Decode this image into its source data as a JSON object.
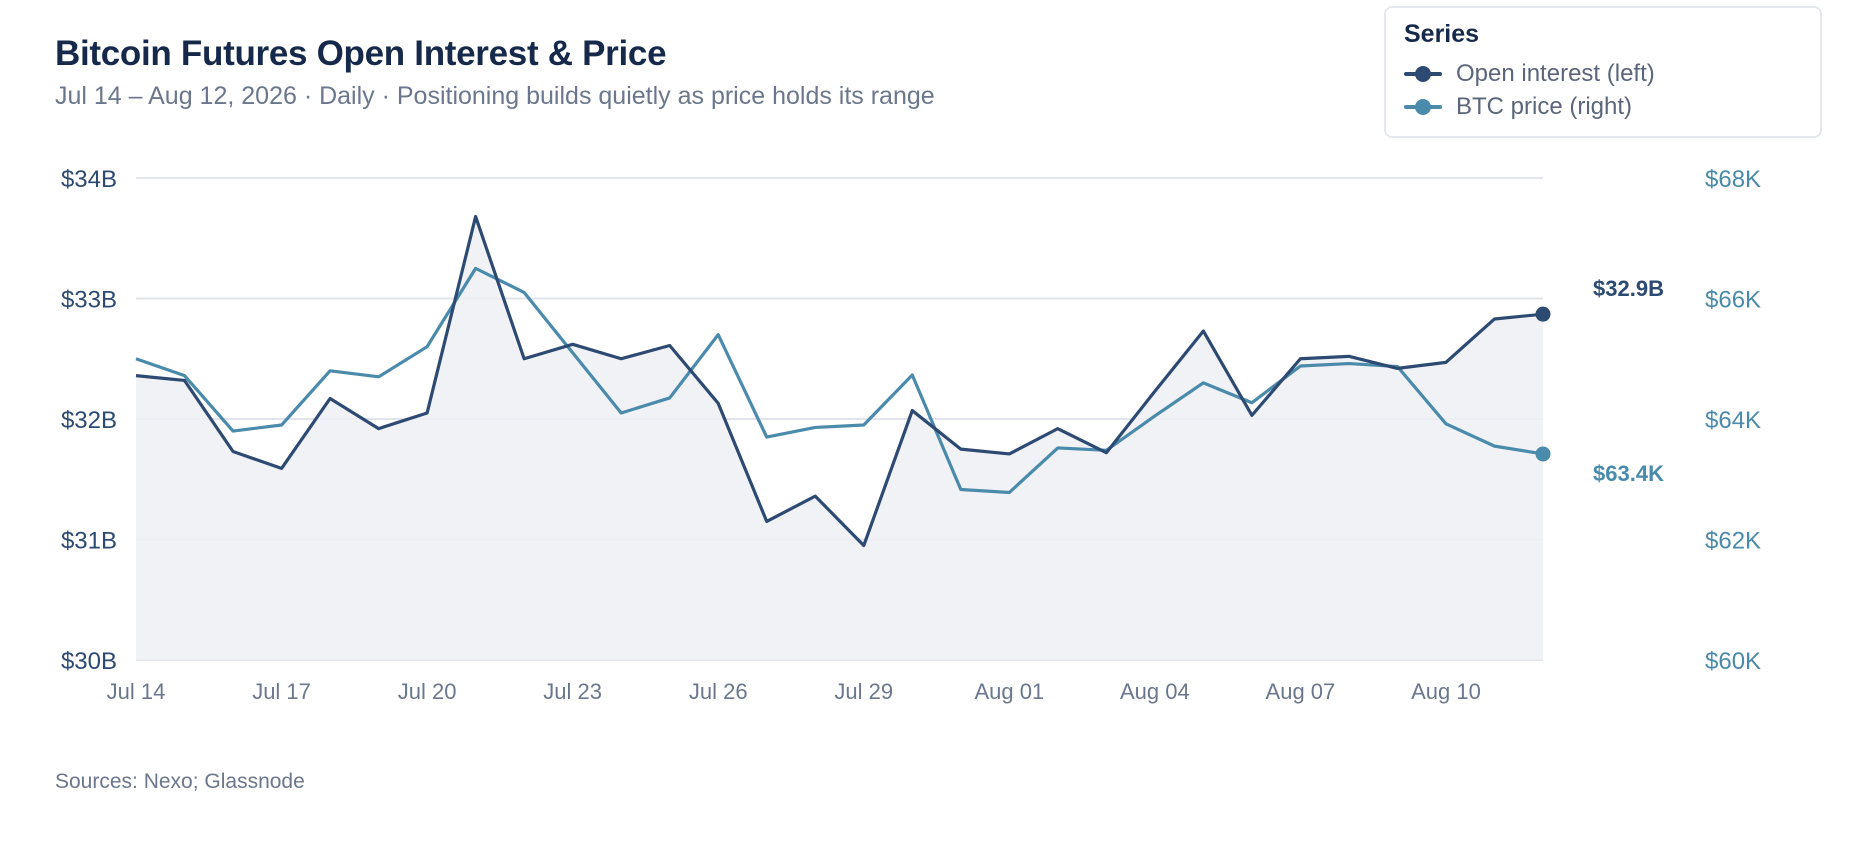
{
  "header": {
    "title": "Bitcoin Futures Open Interest & Price",
    "subtitle": "Jul 14 – Aug 12, 2026 · Daily · Positioning builds quietly as price holds its range"
  },
  "legend": {
    "title": "Series",
    "items": [
      {
        "label": "Open interest (left)",
        "color": "#2d4a72"
      },
      {
        "label": "BTC price (right)",
        "color": "#4a8aab"
      }
    ]
  },
  "footer": {
    "source": "Sources: Nexo; Glassnode"
  },
  "chart_data": {
    "type": "line",
    "x_tick_labels": [
      "Jul 14",
      "Jul 17",
      "Jul 20",
      "Jul 23",
      "Jul 26",
      "Jul 29",
      "Aug 01",
      "Aug 04",
      "Aug 07",
      "Aug 10"
    ],
    "x": [
      "Jul 14",
      "Jul 15",
      "Jul 16",
      "Jul 17",
      "Jul 18",
      "Jul 19",
      "Jul 20",
      "Jul 21",
      "Jul 22",
      "Jul 23",
      "Jul 24",
      "Jul 25",
      "Jul 26",
      "Jul 27",
      "Jul 28",
      "Jul 29",
      "Jul 30",
      "Jul 31",
      "Aug 01",
      "Aug 02",
      "Aug 03",
      "Aug 04",
      "Aug 05",
      "Aug 06",
      "Aug 07",
      "Aug 08",
      "Aug 09",
      "Aug 10",
      "Aug 11",
      "Aug 12"
    ],
    "y_left": {
      "unit": "$B",
      "range": [
        30,
        34
      ],
      "ticks": [
        30,
        31,
        32,
        33,
        34
      ],
      "tick_labels": [
        "$30B",
        "$31B",
        "$32B",
        "$33B",
        "$34B"
      ]
    },
    "y_right": {
      "unit": "$K",
      "range": [
        60,
        68
      ],
      "ticks": [
        60,
        62,
        64,
        66,
        68
      ],
      "tick_labels": [
        "$60K",
        "$62K",
        "$64K",
        "$66K",
        "$68K"
      ]
    },
    "grid": true,
    "legend_position": "top-right",
    "series": [
      {
        "name": "Open interest (left)",
        "axis": "left",
        "color": "#2d4a72",
        "end_label": "$32.9B",
        "values": [
          32.36,
          32.32,
          31.73,
          31.59,
          32.17,
          31.92,
          32.05,
          33.68,
          32.5,
          32.62,
          32.5,
          32.61,
          32.13,
          31.15,
          31.36,
          30.95,
          32.07,
          31.75,
          31.71,
          31.92,
          31.72,
          32.23,
          32.73,
          32.03,
          32.5,
          32.52,
          32.42,
          32.47,
          32.83,
          32.87
        ]
      },
      {
        "name": "BTC price (right)",
        "axis": "right",
        "color": "#4a8aab",
        "end_label": "$63.4K",
        "values": [
          65.0,
          64.72,
          63.8,
          63.9,
          64.8,
          64.7,
          65.2,
          66.5,
          66.1,
          65.1,
          64.1,
          64.35,
          65.4,
          63.7,
          63.86,
          63.9,
          64.73,
          62.83,
          62.78,
          63.52,
          63.48,
          64.05,
          64.6,
          64.27,
          64.88,
          64.92,
          64.87,
          63.92,
          63.55,
          63.42
        ]
      }
    ]
  }
}
